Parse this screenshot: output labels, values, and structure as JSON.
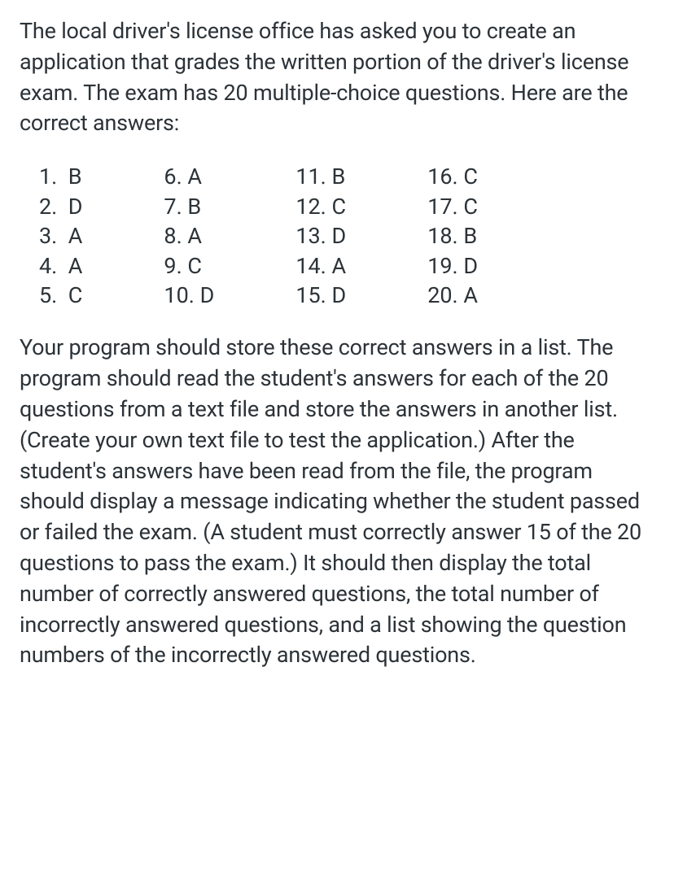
{
  "intro_paragraph": "The local driver's license office has asked you to create an application that grades the written portion of the driver's license exam. The exam has 20 multiple-choice questions. Here are the correct answers:",
  "answers": {
    "col1": [
      {
        "num": "1.",
        "letter": "B"
      },
      {
        "num": "2.",
        "letter": "D"
      },
      {
        "num": "3.",
        "letter": "A"
      },
      {
        "num": "4.",
        "letter": "A"
      },
      {
        "num": "5.",
        "letter": "C"
      }
    ],
    "col2": [
      {
        "num": "6.",
        "letter": "A"
      },
      {
        "num": "7.",
        "letter": "B"
      },
      {
        "num": "8.",
        "letter": "A"
      },
      {
        "num": "9.",
        "letter": "C"
      },
      {
        "num": "10.",
        "letter": "D"
      }
    ],
    "col3": [
      {
        "num": "11.",
        "letter": "B"
      },
      {
        "num": "12.",
        "letter": "C"
      },
      {
        "num": "13.",
        "letter": "D"
      },
      {
        "num": "14.",
        "letter": "A"
      },
      {
        "num": "15.",
        "letter": "D"
      }
    ],
    "col4": [
      {
        "num": "16.",
        "letter": "C"
      },
      {
        "num": "17.",
        "letter": "C"
      },
      {
        "num": "18.",
        "letter": "B"
      },
      {
        "num": "19.",
        "letter": "D"
      },
      {
        "num": "20.",
        "letter": "A"
      }
    ]
  },
  "description_paragraph": "Your program should store these correct answers in a list. The program should read the student's answers for each of the 20 questions from a text file and store the answers in another list. (Create your own text file to test the application.) After the student's answers have been read from the file, the program should display a message indicating whether the student passed or failed the exam. (A student must correctly answer 15 of the 20 questions to pass the exam.) It should then display the total number of correctly answered questions, the total number of incorrectly answered questions, and a list showing the question numbers of the incorrectly answered questions."
}
